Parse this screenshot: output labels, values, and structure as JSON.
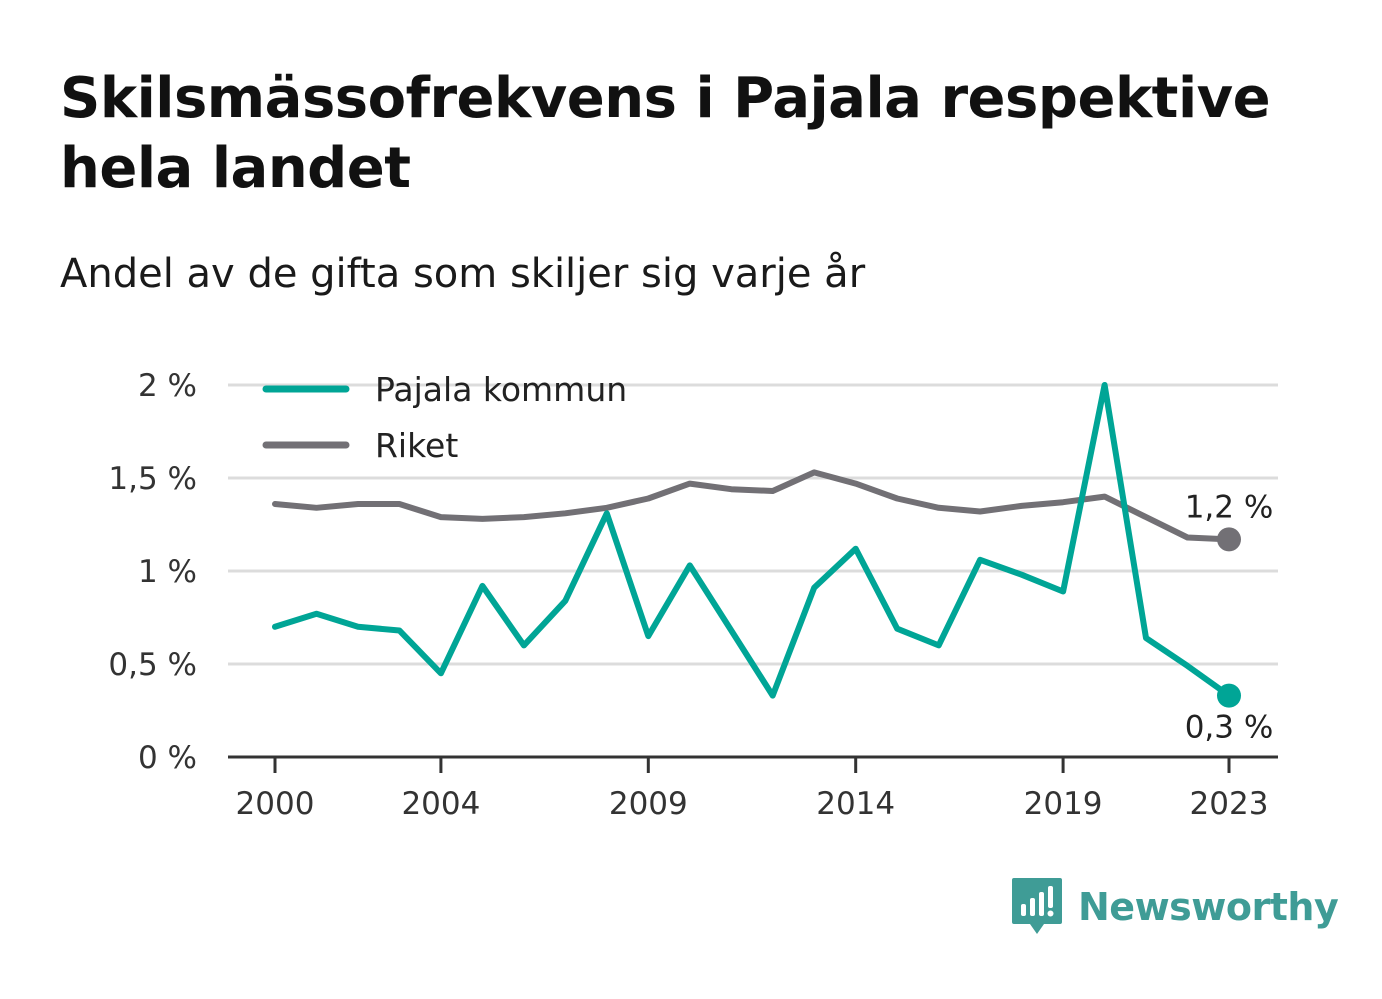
{
  "title": "Skilsmässofrekvens i Pajala respektive hela landet",
  "subtitle": "Andel av de gifta som skiljer sig varje år",
  "brand": {
    "name": "Newsworthy",
    "color": "#3f9c96",
    "icon": "newsworthy-logo-icon"
  },
  "chart_data": {
    "type": "line",
    "x": [
      2000,
      2001,
      2002,
      2003,
      2004,
      2005,
      2006,
      2007,
      2008,
      2009,
      2010,
      2011,
      2012,
      2013,
      2014,
      2015,
      2016,
      2017,
      2018,
      2019,
      2020,
      2021,
      2022,
      2023
    ],
    "series": [
      {
        "name": "Pajala kommun",
        "color": "#00a596",
        "values": [
          0.7,
          0.77,
          0.7,
          0.68,
          0.45,
          0.92,
          0.6,
          0.84,
          1.31,
          0.65,
          1.03,
          0.68,
          0.33,
          0.91,
          1.12,
          0.69,
          0.6,
          1.06,
          0.98,
          0.89,
          2.0,
          0.64,
          0.49,
          0.33
        ],
        "end_label": "0,3 %"
      },
      {
        "name": "Riket",
        "color": "#727075",
        "values": [
          1.36,
          1.34,
          1.36,
          1.36,
          1.29,
          1.28,
          1.29,
          1.31,
          1.34,
          1.39,
          1.47,
          1.44,
          1.43,
          1.53,
          1.47,
          1.39,
          1.34,
          1.32,
          1.35,
          1.37,
          1.4,
          1.29,
          1.18,
          1.17
        ],
        "end_label": "1,2 %"
      }
    ],
    "x_ticks": [
      2000,
      2004,
      2009,
      2014,
      2019,
      2023
    ],
    "x_tick_labels": [
      "2000",
      "2004",
      "2009",
      "2014",
      "2019",
      "2023"
    ],
    "y_ticks": [
      0,
      0.5,
      1,
      1.5,
      2
    ],
    "y_tick_labels": [
      "0 %",
      "0,5 %",
      "1 %",
      "1,5 %",
      "2 %"
    ],
    "ylim": [
      0,
      2
    ],
    "xlim": [
      2000,
      2023
    ],
    "grid": "horizontal",
    "legend": "top-left"
  }
}
